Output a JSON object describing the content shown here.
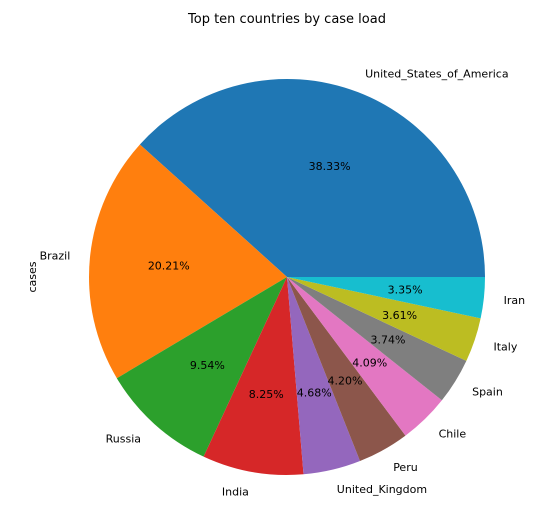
{
  "chart_data": {
    "type": "pie",
    "title": "Top ten countries by case load",
    "ylabel": "cases",
    "start_angle_deg": 0,
    "direction": "counterclockwise",
    "slices": [
      {
        "label": "United_States_of_America",
        "value": 38.33,
        "pct_label": "38.33%",
        "color": "#1f77b4"
      },
      {
        "label": "Brazil",
        "value": 20.21,
        "pct_label": "20.21%",
        "color": "#ff7f0e"
      },
      {
        "label": "Russia",
        "value": 9.54,
        "pct_label": "9.54%",
        "color": "#2ca02c"
      },
      {
        "label": "India",
        "value": 8.25,
        "pct_label": "8.25%",
        "color": "#d62728"
      },
      {
        "label": "United_Kingdom",
        "value": 4.68,
        "pct_label": "4.68%",
        "color": "#9467bd"
      },
      {
        "label": "Peru",
        "value": 4.2,
        "pct_label": "4.20%",
        "color": "#8c564b"
      },
      {
        "label": "Chile",
        "value": 4.09,
        "pct_label": "4.09%",
        "color": "#e377c2"
      },
      {
        "label": "Spain",
        "value": 3.74,
        "pct_label": "3.74%",
        "color": "#7f7f7f"
      },
      {
        "label": "Italy",
        "value": 3.61,
        "pct_label": "3.61%",
        "color": "#bcbd22"
      },
      {
        "label": "Iran",
        "value": 3.35,
        "pct_label": "3.35%",
        "color": "#17becf"
      }
    ]
  }
}
